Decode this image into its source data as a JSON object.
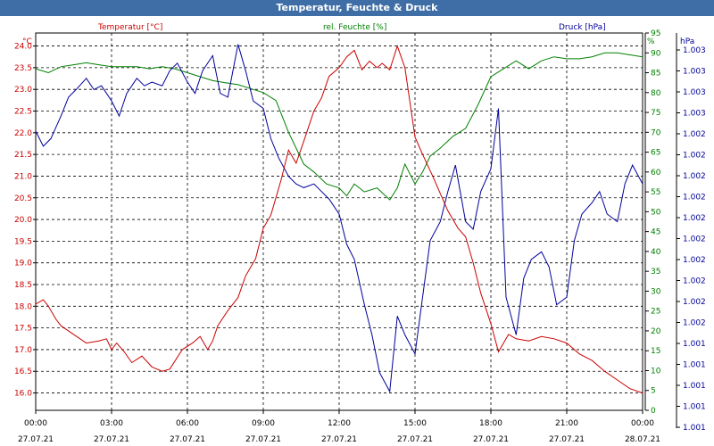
{
  "window_title": "Temperatur, Feuchte & Druck",
  "chart_data": {
    "type": "line",
    "title": "Temperatur, Feuchte & Druck",
    "series_labels": {
      "temperature": "Temperatur [°C]",
      "humidity": "rel. Feuchte [%]",
      "pressure": "Druck [hPa]"
    },
    "axis_units": {
      "left": "°C",
      "right_humidity": "%",
      "right_pressure": "hPa"
    },
    "colors": {
      "temperature": "#cc0000",
      "humidity": "#008000",
      "pressure": "#000099",
      "grid": "#000000",
      "title_bar": "#3f6ea6"
    },
    "x_range_hours": [
      0,
      24
    ],
    "x_ticks": [
      {
        "hour": 0,
        "time": "00:00",
        "date": "27.07.21"
      },
      {
        "hour": 3,
        "time": "03:00",
        "date": "27.07.21"
      },
      {
        "hour": 6,
        "time": "06:00",
        "date": "27.07.21"
      },
      {
        "hour": 9,
        "time": "09:00",
        "date": "27.07.21"
      },
      {
        "hour": 12,
        "time": "12:00",
        "date": "27.07.21"
      },
      {
        "hour": 15,
        "time": "15:00",
        "date": "27.07.21"
      },
      {
        "hour": 18,
        "time": "18:00",
        "date": "27.07.21"
      },
      {
        "hour": 21,
        "time": "21:00",
        "date": "27.07.21"
      },
      {
        "hour": 24,
        "time": "00:00",
        "date": "28.07.21"
      }
    ],
    "temp_range": [
      15.6,
      24.3
    ],
    "temp_ticks": [
      "16.0",
      "16.5",
      "17.0",
      "17.5",
      "18.0",
      "18.5",
      "19.0",
      "19.5",
      "20.0",
      "20.5",
      "21.0",
      "21.5",
      "22.0",
      "22.5",
      "23.0",
      "23.5",
      "24.0"
    ],
    "humidity_range": [
      0,
      95
    ],
    "humidity_ticks": [
      "0",
      "5",
      "10",
      "15",
      "20",
      "25",
      "30",
      "35",
      "40",
      "45",
      "50",
      "55",
      "60",
      "65",
      "70",
      "75",
      "80",
      "85",
      "90",
      "95"
    ],
    "pressure_ticks": [
      "1.001",
      "1.001",
      "1.001",
      "1.001",
      "1.001",
      "1.002",
      "1.002",
      "1.002",
      "1.002",
      "1.002",
      "1.002",
      "1.002",
      "1.002",
      "1.002",
      "1.002",
      "1.003",
      "1.003",
      "1.003",
      "1.003"
    ],
    "pressure_range_norm": [
      0,
      1
    ],
    "temperature": {
      "hours": [
        0,
        0.3,
        0.5,
        0.8,
        1.0,
        1.5,
        2.0,
        2.5,
        2.8,
        3.0,
        3.2,
        3.5,
        3.8,
        4.2,
        4.6,
        5.0,
        5.3,
        5.8,
        6.2,
        6.5,
        6.8,
        7.0,
        7.2,
        7.6,
        8.0,
        8.3,
        8.7,
        9.0,
        9.3,
        9.7,
        10.0,
        10.3,
        10.6,
        11.0,
        11.3,
        11.6,
        12.0,
        12.3,
        12.6,
        12.9,
        13.2,
        13.5,
        13.7,
        14.0,
        14.3,
        14.6,
        15.0,
        15.3,
        15.7,
        16.0,
        16.3,
        16.7,
        17.0,
        17.3,
        17.6,
        18.0,
        18.3,
        18.7,
        19.0,
        19.5,
        20.0,
        20.5,
        21.0,
        21.5,
        22.0,
        22.5,
        23.0,
        23.5,
        24.0
      ],
      "values": [
        18.05,
        18.15,
        18.0,
        17.7,
        17.55,
        17.35,
        17.15,
        17.2,
        17.25,
        17.0,
        17.15,
        16.95,
        16.7,
        16.85,
        16.6,
        16.5,
        16.55,
        17.0,
        17.15,
        17.3,
        17.0,
        17.2,
        17.55,
        17.9,
        18.2,
        18.7,
        19.1,
        19.8,
        20.1,
        20.9,
        21.6,
        21.3,
        21.8,
        22.5,
        22.8,
        23.3,
        23.5,
        23.75,
        23.9,
        23.45,
        23.65,
        23.5,
        23.6,
        23.45,
        24.0,
        23.5,
        21.9,
        21.5,
        21.0,
        20.6,
        20.2,
        19.8,
        19.6,
        19.0,
        18.3,
        17.6,
        16.95,
        17.35,
        17.25,
        17.2,
        17.3,
        17.25,
        17.15,
        16.9,
        16.75,
        16.5,
        16.3,
        16.1,
        16.0
      ]
    },
    "humidity": {
      "hours": [
        0,
        0.5,
        1.0,
        1.5,
        2.0,
        2.5,
        3.0,
        3.5,
        4.0,
        4.5,
        5.0,
        5.5,
        6.0,
        6.5,
        7.0,
        7.5,
        8.0,
        8.5,
        9.0,
        9.5,
        10.0,
        10.3,
        10.6,
        11.0,
        11.5,
        12.0,
        12.3,
        12.6,
        13.0,
        13.5,
        14.0,
        14.3,
        14.6,
        15.0,
        15.3,
        15.6,
        16.0,
        16.5,
        17.0,
        17.5,
        18.0,
        18.5,
        19.0,
        19.5,
        20.0,
        20.5,
        21.0,
        21.5,
        22.0,
        22.5,
        23.0,
        23.5,
        24.0
      ],
      "values": [
        86,
        85,
        86.5,
        87,
        87.5,
        87,
        86.5,
        86.5,
        86.5,
        86,
        86.5,
        86,
        85,
        84,
        83,
        82.5,
        82,
        81,
        80,
        78,
        70,
        66,
        62,
        60,
        57,
        56,
        54,
        57,
        55,
        56,
        53,
        56,
        62,
        57,
        60,
        64,
        66,
        69,
        71,
        77,
        84,
        86,
        88,
        86,
        88,
        89,
        88.5,
        88.5,
        89,
        90,
        90,
        89.5,
        89
      ]
    },
    "pressure": {
      "hours": [
        0,
        0.3,
        0.6,
        1.0,
        1.3,
        1.6,
        2.0,
        2.3,
        2.6,
        3.0,
        3.3,
        3.6,
        4.0,
        4.3,
        4.6,
        5.0,
        5.3,
        5.6,
        6.0,
        6.3,
        6.6,
        7.0,
        7.3,
        7.6,
        8.0,
        8.3,
        8.6,
        9.0,
        9.3,
        9.6,
        10.0,
        10.3,
        10.6,
        11.0,
        11.3,
        11.6,
        12.0,
        12.3,
        12.6,
        13.0,
        13.3,
        13.6,
        14.0,
        14.3,
        14.6,
        15.0,
        15.3,
        15.6,
        16.0,
        16.3,
        16.6,
        17.0,
        17.3,
        17.6,
        18.0,
        18.3,
        18.6,
        19.0,
        19.3,
        19.6,
        20.0,
        20.3,
        20.6,
        21.0,
        21.3,
        21.6,
        22.0,
        22.3,
        22.6,
        23.0,
        23.3,
        23.6,
        24.0
      ],
      "values": [
        0.74,
        0.7,
        0.72,
        0.78,
        0.83,
        0.85,
        0.88,
        0.85,
        0.86,
        0.82,
        0.78,
        0.84,
        0.88,
        0.86,
        0.87,
        0.86,
        0.9,
        0.92,
        0.87,
        0.84,
        0.9,
        0.94,
        0.84,
        0.83,
        0.97,
        0.9,
        0.82,
        0.8,
        0.72,
        0.67,
        0.62,
        0.6,
        0.59,
        0.6,
        0.58,
        0.56,
        0.52,
        0.44,
        0.4,
        0.28,
        0.2,
        0.1,
        0.05,
        0.25,
        0.2,
        0.15,
        0.3,
        0.45,
        0.5,
        0.58,
        0.65,
        0.5,
        0.48,
        0.58,
        0.64,
        0.8,
        0.3,
        0.2,
        0.35,
        0.4,
        0.42,
        0.38,
        0.28,
        0.3,
        0.45,
        0.52,
        0.55,
        0.58,
        0.52,
        0.5,
        0.6,
        0.65,
        0.6
      ]
    }
  }
}
